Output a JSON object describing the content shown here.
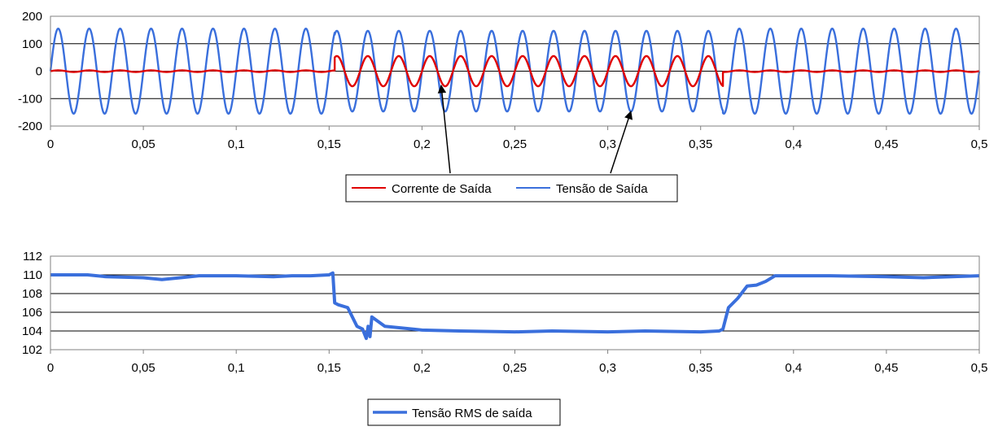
{
  "colors": {
    "current": "#e00000",
    "voltage": "#3a6fdc",
    "rms": "#3a6fdc",
    "grid": "#000000",
    "axis": "#808080"
  },
  "chart_data": [
    {
      "type": "line",
      "title": "",
      "xlabel": "",
      "ylabel": "",
      "xlim": [
        0,
        0.5
      ],
      "ylim": [
        -200,
        200
      ],
      "x_ticks": [
        0,
        0.05,
        0.1,
        0.15,
        0.2,
        0.25,
        0.3,
        0.35,
        0.4,
        0.45,
        0.5
      ],
      "x_tick_labels": [
        "0",
        "0,05",
        "0,1",
        "0,15",
        "0,2",
        "0,25",
        "0,3",
        "0,35",
        "0,4",
        "0,45",
        "0,5"
      ],
      "y_ticks": [
        -200,
        -100,
        0,
        100,
        200
      ],
      "y_tick_labels": [
        "-200",
        "-100",
        "0",
        "100",
        "200"
      ],
      "grid": "horizontal",
      "legend_position": "bottom",
      "series": [
        {
          "name": "Corrente de Saída",
          "color": "#e00000",
          "waveform": "sine",
          "frequency_hz": 60,
          "segments": [
            {
              "x_start": 0,
              "x_end": 0.153,
              "amplitude": 3
            },
            {
              "x_start": 0.153,
              "x_end": 0.362,
              "amplitude": 55
            },
            {
              "x_start": 0.362,
              "x_end": 0.5,
              "amplitude": 3
            }
          ]
        },
        {
          "name": "Tensão de Saída",
          "color": "#3a6fdc",
          "waveform": "sine",
          "frequency_hz": 60,
          "segments": [
            {
              "x_start": 0,
              "x_end": 0.153,
              "amplitude": 155
            },
            {
              "x_start": 0.153,
              "x_end": 0.362,
              "amplitude": 147
            },
            {
              "x_start": 0.362,
              "x_end": 0.5,
              "amplitude": 155
            }
          ]
        }
      ]
    },
    {
      "type": "line",
      "title": "",
      "xlabel": "",
      "ylabel": "",
      "xlim": [
        0,
        0.5
      ],
      "ylim": [
        102,
        112
      ],
      "x_ticks": [
        0,
        0.05,
        0.1,
        0.15,
        0.2,
        0.25,
        0.3,
        0.35,
        0.4,
        0.45,
        0.5
      ],
      "x_tick_labels": [
        "0",
        "0,05",
        "0,1",
        "0,15",
        "0,2",
        "0,25",
        "0,3",
        "0,35",
        "0,4",
        "0,45",
        "0,5"
      ],
      "y_ticks": [
        102,
        104,
        106,
        108,
        110,
        112
      ],
      "y_tick_labels": [
        "102",
        "104",
        "106",
        "108",
        "110",
        "112"
      ],
      "grid": "horizontal",
      "legend_position": "bottom",
      "series": [
        {
          "name": "Tensão RMS de saída",
          "color": "#3a6fdc",
          "x": [
            0,
            0.02,
            0.03,
            0.05,
            0.06,
            0.07,
            0.08,
            0.1,
            0.12,
            0.13,
            0.14,
            0.15,
            0.152,
            0.153,
            0.155,
            0.16,
            0.165,
            0.168,
            0.17,
            0.171,
            0.172,
            0.173,
            0.18,
            0.2,
            0.22,
            0.25,
            0.27,
            0.3,
            0.32,
            0.35,
            0.36,
            0.362,
            0.365,
            0.37,
            0.375,
            0.38,
            0.385,
            0.39,
            0.4,
            0.42,
            0.45,
            0.47,
            0.5
          ],
          "y": [
            110,
            110,
            109.8,
            109.7,
            109.5,
            109.7,
            109.9,
            109.9,
            109.8,
            109.9,
            109.9,
            110,
            110.2,
            107,
            106.8,
            106.5,
            104.5,
            104.2,
            103.2,
            104.5,
            103.4,
            105.5,
            104.5,
            104.1,
            104,
            103.9,
            104,
            103.9,
            104,
            103.9,
            104,
            104.2,
            106.5,
            107.5,
            108.8,
            108.9,
            109.3,
            109.9,
            109.9,
            109.9,
            109.8,
            109.7,
            109.9
          ]
        }
      ]
    }
  ]
}
